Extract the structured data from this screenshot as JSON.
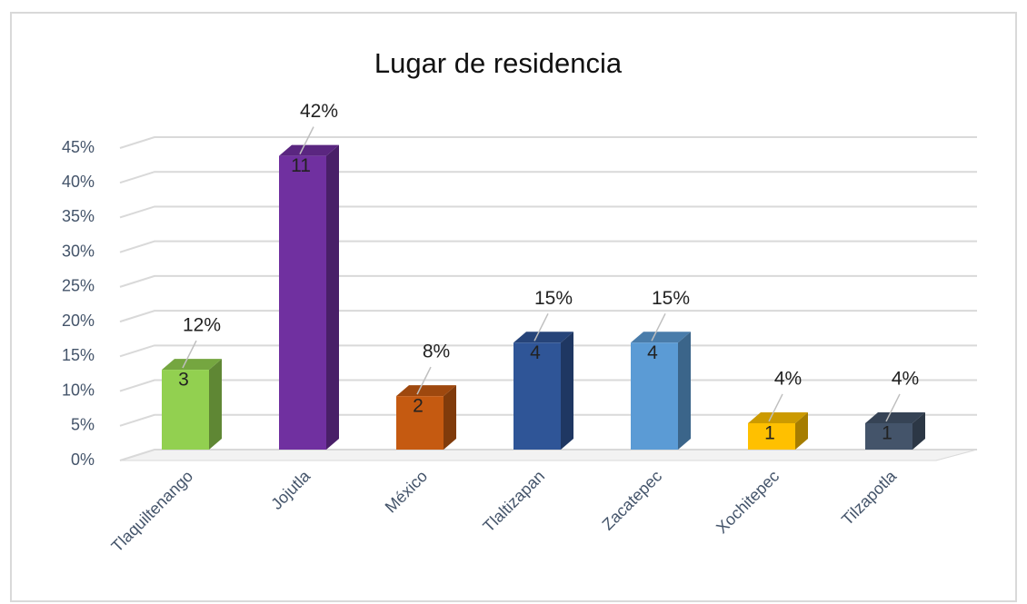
{
  "chart_data": {
    "type": "bar3d",
    "title": "Lugar de residencia",
    "categories": [
      "Tlaquiltenango",
      "Jojutla",
      "México",
      "Tlaltizapan",
      "Zacatepec",
      "Xochitepec",
      "Tilzapotla"
    ],
    "values": [
      11.5,
      42.3,
      7.7,
      15.4,
      15.4,
      3.8,
      3.8
    ],
    "value_labels": [
      "12%",
      "42%",
      "8%",
      "15%",
      "15%",
      "4%",
      "4%"
    ],
    "counts": [
      3,
      11,
      2,
      4,
      4,
      1,
      1
    ],
    "colors": [
      "#92d050",
      "#7030a0",
      "#c55a11",
      "#2f5597",
      "#5b9bd5",
      "#ffc000",
      "#44546a"
    ],
    "ylim": [
      0,
      45
    ],
    "yticks": [
      {
        "value": 0,
        "label": "0%"
      },
      {
        "value": 5,
        "label": "5%"
      },
      {
        "value": 10,
        "label": "10%"
      },
      {
        "value": 15,
        "label": "15%"
      },
      {
        "value": 20,
        "label": "20%"
      },
      {
        "value": 25,
        "label": "25%"
      },
      {
        "value": 30,
        "label": "30%"
      },
      {
        "value": 35,
        "label": "35%"
      },
      {
        "value": 40,
        "label": "40%"
      },
      {
        "value": 45,
        "label": "45%"
      }
    ],
    "grid": true
  }
}
